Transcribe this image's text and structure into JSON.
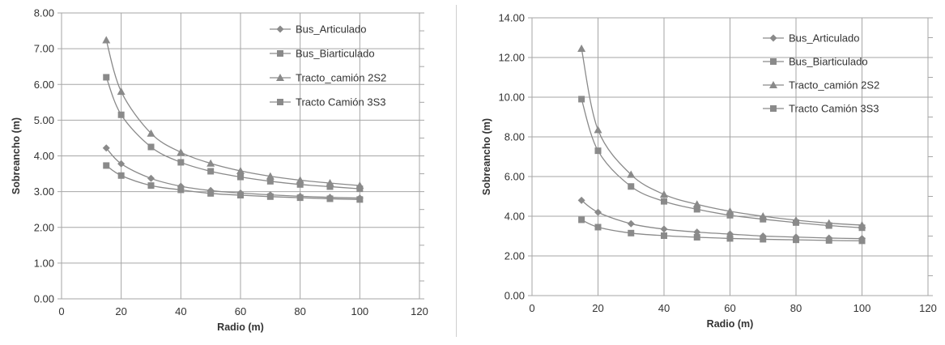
{
  "chart_data": [
    {
      "type": "line",
      "title": "",
      "xlabel": "Radio (m)",
      "ylabel": "Sobreancho (m)",
      "xlim": [
        0,
        120
      ],
      "ylim": [
        0,
        8
      ],
      "x_ticks": [
        "0",
        "20",
        "40",
        "60",
        "80",
        "100",
        "120"
      ],
      "y_ticks": [
        "0.00",
        "1.00",
        "2.00",
        "3.00",
        "4.00",
        "5.00",
        "6.00",
        "7.00",
        "8.00"
      ],
      "grid": true,
      "legend_position": "top-right",
      "x": [
        15,
        20,
        30,
        40,
        50,
        60,
        70,
        80,
        90,
        100
      ],
      "series": [
        {
          "name": "Bus_Articulado",
          "marker": "diamond",
          "values": [
            4.22,
            3.78,
            3.37,
            3.15,
            3.03,
            2.96,
            2.91,
            2.87,
            2.84,
            2.82
          ]
        },
        {
          "name": "Bus_Biarticulado",
          "marker": "square",
          "values": [
            3.73,
            3.45,
            3.17,
            3.05,
            2.95,
            2.9,
            2.86,
            2.83,
            2.8,
            2.78
          ]
        },
        {
          "name": "Tracto_camión 2S2",
          "marker": "triangle",
          "values": [
            7.24,
            5.8,
            4.63,
            4.1,
            3.79,
            3.58,
            3.43,
            3.32,
            3.24,
            3.17
          ]
        },
        {
          "name": "Tracto Camión 3S3",
          "marker": "square",
          "values": [
            6.2,
            5.15,
            4.25,
            3.82,
            3.57,
            3.41,
            3.29,
            3.2,
            3.14,
            3.08
          ]
        }
      ]
    },
    {
      "type": "line",
      "title": "",
      "xlabel": "Radio (m)",
      "ylabel": "Sobreancho (m)",
      "xlim": [
        0,
        120
      ],
      "ylim": [
        0,
        14
      ],
      "x_ticks": [
        "0",
        "20",
        "40",
        "60",
        "80",
        "100",
        "120"
      ],
      "y_ticks": [
        "0.00",
        "2.00",
        "4.00",
        "6.00",
        "8.00",
        "10.00",
        "12.00",
        "14.00"
      ],
      "grid": true,
      "legend_position": "top-right",
      "x": [
        15,
        20,
        30,
        40,
        50,
        60,
        70,
        80,
        90,
        100
      ],
      "series": [
        {
          "name": "Bus_Articulado",
          "marker": "diamond",
          "values": [
            4.8,
            4.2,
            3.62,
            3.35,
            3.2,
            3.1,
            3.0,
            2.95,
            2.9,
            2.87
          ]
        },
        {
          "name": "Bus_Biarticulado",
          "marker": "square",
          "values": [
            3.82,
            3.45,
            3.15,
            3.02,
            2.94,
            2.88,
            2.84,
            2.81,
            2.78,
            2.76
          ]
        },
        {
          "name": "Tracto_camión 2S2",
          "marker": "triangle",
          "values": [
            12.45,
            8.35,
            6.1,
            5.1,
            4.6,
            4.25,
            4.0,
            3.8,
            3.65,
            3.55
          ]
        },
        {
          "name": "Tracto Camión 3S3",
          "marker": "square",
          "values": [
            9.9,
            7.3,
            5.5,
            4.75,
            4.35,
            4.05,
            3.85,
            3.68,
            3.53,
            3.42
          ]
        }
      ]
    }
  ],
  "colors": {
    "series": "#8a8a8a",
    "grid": "#a6a6a6",
    "frame": "#a6a6a6",
    "text": "#333333"
  }
}
